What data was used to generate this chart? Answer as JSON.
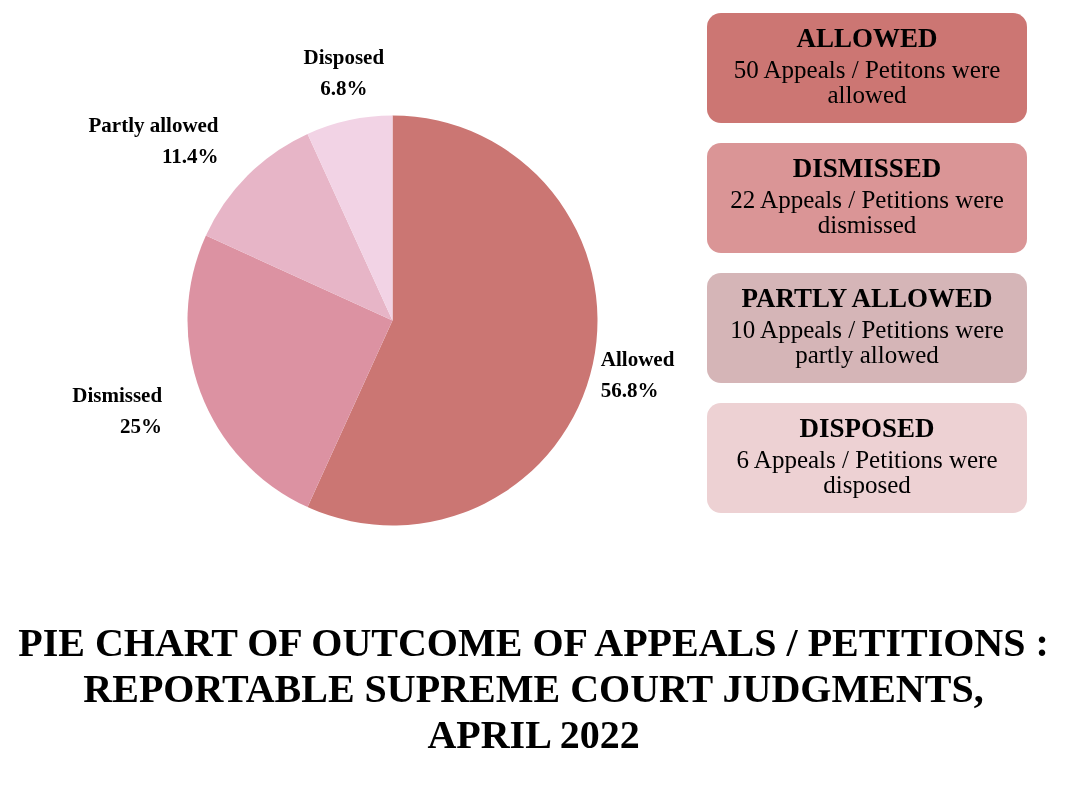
{
  "chart_data": {
    "type": "pie",
    "title": "PIE CHART OF OUTCOME OF APPEALS / PETITIONS : REPORTABLE SUPREME COURT JUDGMENTS, APRIL 2022",
    "categories": [
      "Allowed",
      "Dismissed",
      "Partly allowed",
      "Disposed"
    ],
    "values": [
      56.8,
      25,
      11.4,
      6.8
    ],
    "value_labels": [
      "56.8%",
      "25%",
      "11.4%",
      "6.8%"
    ],
    "colors": [
      "#cb7673",
      "#dc92a2",
      "#e7b5c7",
      "#f2d3e5"
    ],
    "annotations": [
      "ALLOWED",
      "50 Appeals / Petitons were allowed",
      "DISMISSED",
      "22 Appeals / Petitions were dismissed",
      "PARTLY ALLOWED",
      "10 Appeals / Petitions were partly allowed",
      "DISPOSED",
      "6 Appeals / Petitions were disposed"
    ]
  }
}
